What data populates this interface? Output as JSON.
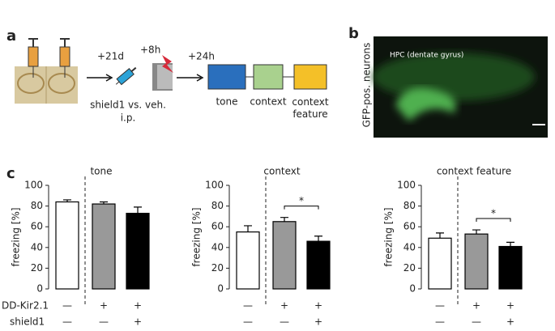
{
  "panel_a": {
    "label": "a",
    "steps": [
      "+21d",
      "+8h",
      "+24h"
    ],
    "injection": [
      "shield1 vs. veh.",
      "i.p."
    ],
    "tests": [
      "tone",
      "context",
      "context feature"
    ]
  },
  "panel_b": {
    "label": "b",
    "ylabel": "GFP-pos. neurons",
    "caption": "HPC (dentate gyrus)"
  },
  "panel_c": {
    "label": "c",
    "condition_labels": [
      "DD-Kir2.1",
      "shield1"
    ]
  },
  "chart_data": [
    {
      "type": "bar",
      "title": "tone",
      "ylabel": "freezing [%]",
      "categories": [
        null,
        null,
        null
      ],
      "values": [
        84,
        82,
        73
      ],
      "errors": [
        2,
        2,
        6
      ],
      "colors": [
        "#ffffff",
        "#999999",
        "#000000"
      ],
      "conditions": [
        [
          "—",
          "+",
          "+"
        ],
        [
          "—",
          "—",
          "+"
        ]
      ],
      "ylim": [
        0,
        100
      ],
      "yticks": [
        0,
        20,
        40,
        60,
        80,
        100
      ]
    },
    {
      "type": "bar",
      "title": "context",
      "ylabel": "freezing [%]",
      "categories": [
        null,
        null,
        null
      ],
      "values": [
        55,
        65,
        46
      ],
      "errors": [
        6,
        4,
        5
      ],
      "colors": [
        "#ffffff",
        "#999999",
        "#000000"
      ],
      "conditions": [
        [
          "—",
          "+",
          "+"
        ],
        [
          "—",
          "—",
          "+"
        ]
      ],
      "annotation": "*",
      "ylim": [
        0,
        100
      ],
      "yticks": [
        0,
        20,
        40,
        60,
        80,
        100
      ]
    },
    {
      "type": "bar",
      "title": "context feature",
      "ylabel": "freezing [%]",
      "categories": [
        null,
        null,
        null
      ],
      "values": [
        49,
        53,
        41
      ],
      "errors": [
        5,
        4,
        4
      ],
      "colors": [
        "#ffffff",
        "#999999",
        "#000000"
      ],
      "conditions": [
        [
          "—",
          "+",
          "+"
        ],
        [
          "—",
          "—",
          "+"
        ]
      ],
      "annotation": "*",
      "ylim": [
        0,
        100
      ],
      "yticks": [
        0,
        20,
        40,
        60,
        80,
        100
      ]
    }
  ]
}
